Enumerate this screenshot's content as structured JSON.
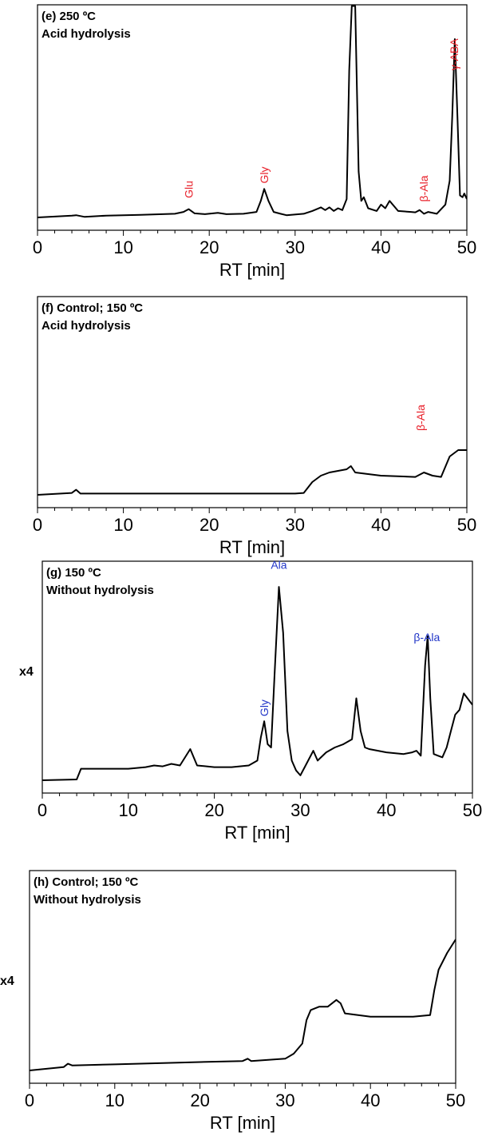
{
  "chart_data": [
    {
      "type": "line",
      "title": "(e) 250 ºC",
      "subtitle": "Acid hydrolysis",
      "xlabel": "RT [min]",
      "ylabel": "",
      "xlim": [
        0,
        50
      ],
      "xticks": [
        "0",
        "10",
        "20",
        "30",
        "40",
        "50"
      ],
      "scale_label": "",
      "annotations": [
        {
          "text": "Glu",
          "x": 17.6,
          "y": 0.105,
          "color": "#e8202a"
        },
        {
          "text": "Gly",
          "x": 26.4,
          "y": 0.185,
          "color": "#e8202a"
        },
        {
          "text": "β-Ala",
          "x": 45.0,
          "y": 0.085,
          "color": "#e8202a"
        },
        {
          "text": "γ-ABA",
          "x": 48.5,
          "y": 0.8,
          "color": "#e8202a"
        }
      ],
      "series": [
        {
          "x": [
            0,
            4,
            4.5,
            5.5,
            8,
            12,
            16,
            17,
            17.6,
            18.3,
            19.5,
            21,
            22,
            24,
            25.5,
            26,
            26.4,
            26.9,
            27.5,
            28.3,
            29,
            31,
            32,
            33,
            33.5,
            34,
            34.5,
            35,
            35.5,
            36,
            36.3,
            36.6,
            37,
            37.4,
            37.7,
            38,
            38.5,
            39.5,
            40,
            40.5,
            41,
            42,
            43.5,
            44,
            44.5,
            45,
            45.5,
            46.5,
            47.5,
            48,
            48.3,
            48.6,
            48.9,
            49.2,
            49.5,
            49.7,
            50
          ],
          "y": [
            0,
            0.01,
            0.012,
            0.003,
            0.01,
            0.014,
            0.02,
            0.03,
            0.045,
            0.022,
            0.018,
            0.025,
            0.018,
            0.02,
            0.03,
            0.09,
            0.155,
            0.09,
            0.03,
            0.02,
            0.012,
            0.02,
            0.035,
            0.055,
            0.04,
            0.055,
            0.035,
            0.05,
            0.04,
            0.1,
            0.8,
            1.15,
            1.15,
            0.25,
            0.09,
            0.11,
            0.05,
            0.035,
            0.07,
            0.05,
            0.09,
            0.035,
            0.03,
            0.028,
            0.04,
            0.02,
            0.03,
            0.02,
            0.07,
            0.2,
            0.55,
            0.97,
            0.55,
            0.12,
            0.11,
            0.13,
            0.1
          ]
        }
      ]
    },
    {
      "type": "line",
      "title": "(f) Control; 150 ºC",
      "subtitle": "Acid hydrolysis",
      "xlabel": "RT [min]",
      "ylabel": "",
      "xlim": [
        0,
        50
      ],
      "xticks": [
        "0",
        "10",
        "20",
        "30",
        "40",
        "50"
      ],
      "scale_label": "",
      "annotations": [
        {
          "text": "β-Ala",
          "x": 44.6,
          "y": 0.1,
          "color": "#e8202a"
        }
      ],
      "series": [
        {
          "x": [
            0,
            4,
            4.5,
            5,
            10,
            20,
            30,
            31,
            32,
            33,
            34,
            36,
            36.5,
            37,
            40,
            44,
            45,
            46,
            47,
            48,
            49,
            50
          ],
          "y": [
            0,
            0.003,
            0.008,
            0.002,
            0.002,
            0.002,
            0.002,
            0.003,
            0.02,
            0.03,
            0.035,
            0.04,
            0.045,
            0.035,
            0.03,
            0.028,
            0.035,
            0.03,
            0.028,
            0.06,
            0.07,
            0.07
          ]
        }
      ]
    },
    {
      "type": "line",
      "title": "(g) 150 ºC",
      "subtitle": "Without hydrolysis",
      "xlabel": "RT [min]",
      "ylabel": "",
      "xlim": [
        0,
        50
      ],
      "xticks": [
        "0",
        "10",
        "20",
        "30",
        "40",
        "50"
      ],
      "scale_label": "x4",
      "annotations": [
        {
          "text": "Gly",
          "x": 25.8,
          "y": 0.39,
          "color": "#2236c8"
        },
        {
          "text": "Ala",
          "x": 27.5,
          "y": 1.29,
          "color": "#2236c8"
        },
        {
          "text": "β-Ala",
          "x": 44.7,
          "y": 0.85,
          "color": "#2236c8"
        }
      ],
      "series": [
        {
          "x": [
            0,
            4,
            4.5,
            5,
            7,
            10,
            12,
            13,
            14,
            15,
            16,
            17.2,
            18,
            20,
            22,
            24,
            25,
            25.4,
            25.8,
            26.2,
            26.6,
            27,
            27.5,
            28,
            28.5,
            29,
            29.5,
            30,
            31,
            31.5,
            32,
            33,
            34,
            35,
            36,
            36.5,
            37,
            37.5,
            38,
            40,
            42,
            43,
            43.5,
            44,
            44.5,
            44.8,
            45.1,
            45.5,
            46,
            46.5,
            47,
            47.5,
            48,
            48.5,
            49,
            50
          ],
          "y": [
            0,
            0.005,
            0.07,
            0.07,
            0.07,
            0.07,
            0.08,
            0.09,
            0.085,
            0.1,
            0.09,
            0.19,
            0.09,
            0.08,
            0.08,
            0.09,
            0.12,
            0.26,
            0.36,
            0.22,
            0.2,
            0.65,
            1.18,
            0.9,
            0.3,
            0.12,
            0.06,
            0.03,
            0.13,
            0.18,
            0.12,
            0.17,
            0.2,
            0.22,
            0.25,
            0.5,
            0.3,
            0.2,
            0.19,
            0.17,
            0.16,
            0.17,
            0.18,
            0.15,
            0.7,
            0.88,
            0.5,
            0.16,
            0.15,
            0.14,
            0.2,
            0.3,
            0.4,
            0.43,
            0.53,
            0.46
          ]
        }
      ]
    },
    {
      "type": "line",
      "title": "(h) Control; 150 ºC",
      "subtitle": "Without hydrolysis",
      "xlabel": "RT [min]",
      "ylabel": "",
      "xlim": [
        0,
        50
      ],
      "xticks": [
        "0",
        "10",
        "20",
        "30",
        "40",
        "50"
      ],
      "scale_label": "x4",
      "annotations": [],
      "series": [
        {
          "x": [
            0,
            4,
            4.5,
            5,
            10,
            20,
            25,
            25.6,
            26,
            30,
            31,
            32,
            32.5,
            33,
            34,
            35,
            36,
            36.5,
            37,
            40,
            45,
            47,
            47.5,
            48,
            49,
            50
          ],
          "y": [
            0,
            0.01,
            0.02,
            0.015,
            0.018,
            0.025,
            0.028,
            0.035,
            0.028,
            0.035,
            0.05,
            0.08,
            0.15,
            0.18,
            0.19,
            0.19,
            0.21,
            0.2,
            0.17,
            0.16,
            0.16,
            0.165,
            0.24,
            0.3,
            0.35,
            0.39
          ]
        }
      ]
    }
  ]
}
